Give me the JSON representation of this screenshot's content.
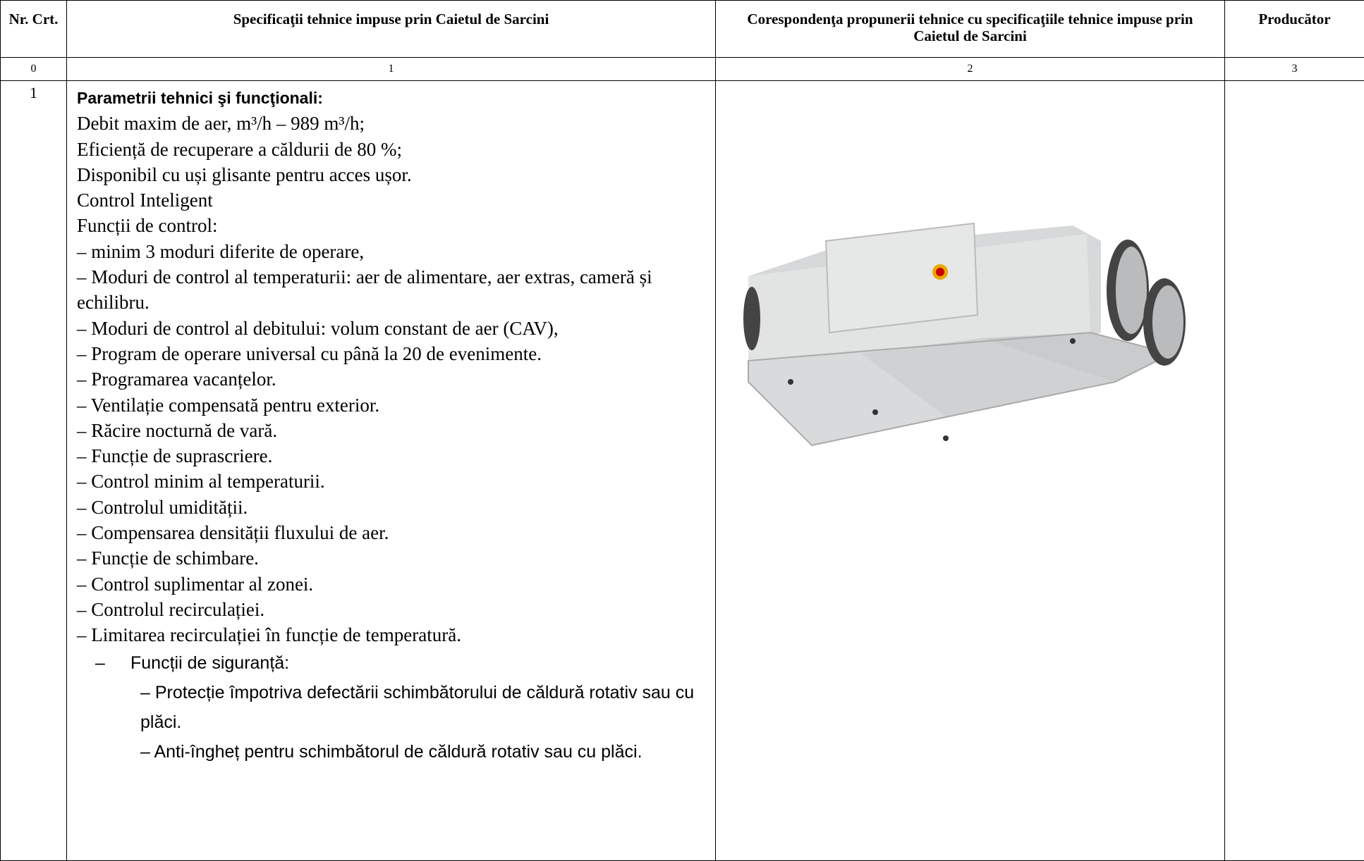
{
  "table": {
    "headers": [
      "Nr. Crt.",
      "Specificaţii tehnice impuse prin Caietul de Sarcini",
      "Corespondenţa propunerii tehnice cu specificaţiile tehnice impuse prin Caietul de Sarcini",
      "Producător"
    ],
    "column_numbers": [
      "0",
      "1",
      "2",
      "3"
    ],
    "rows": [
      {
        "number": "1",
        "title": "Parametrii tehnici şi funcţionali:",
        "lines": [
          "Debit maxim de aer, m³/h   – 989 m³/h;",
          "Eficiență de recuperare a căldurii de 80 %;",
          "Disponibil cu uși glisante pentru acces ușor.",
          "Control Inteligent",
          "Funcții de control:",
          "– minim 3 moduri diferite de operare,",
          "– Moduri de control al temperaturii: aer de alimentare, aer extras, cameră și echilibru.",
          "– Moduri de control al debitului: volum constant de aer (CAV),",
          "– Program de operare universal cu până la 20 de evenimente.",
          "– Programarea vacanțelor.",
          "– Ventilație compensată pentru exterior.",
          "– Răcire nocturnă de vară.",
          "– Funcție de suprascriere.",
          "– Control minim al temperaturii.",
          "– Controlul umidității.",
          "– Compensarea densității fluxului de aer.",
          "– Funcție de schimbare.",
          "– Control suplimentar al zonei.",
          "– Controlul recirculației.",
          "– Limitarea recirculației în funcție de temperatură."
        ],
        "sublist_marker": "–",
        "sublist_title": "Funcții de siguranță:",
        "sublist": [
          "– Protecție împotriva defectării schimbătorului de căldură rotativ sau cu plăci.",
          "– Anti-îngheț pentru schimbătorul de căldură rotativ sau cu plăci."
        ]
      }
    ]
  }
}
